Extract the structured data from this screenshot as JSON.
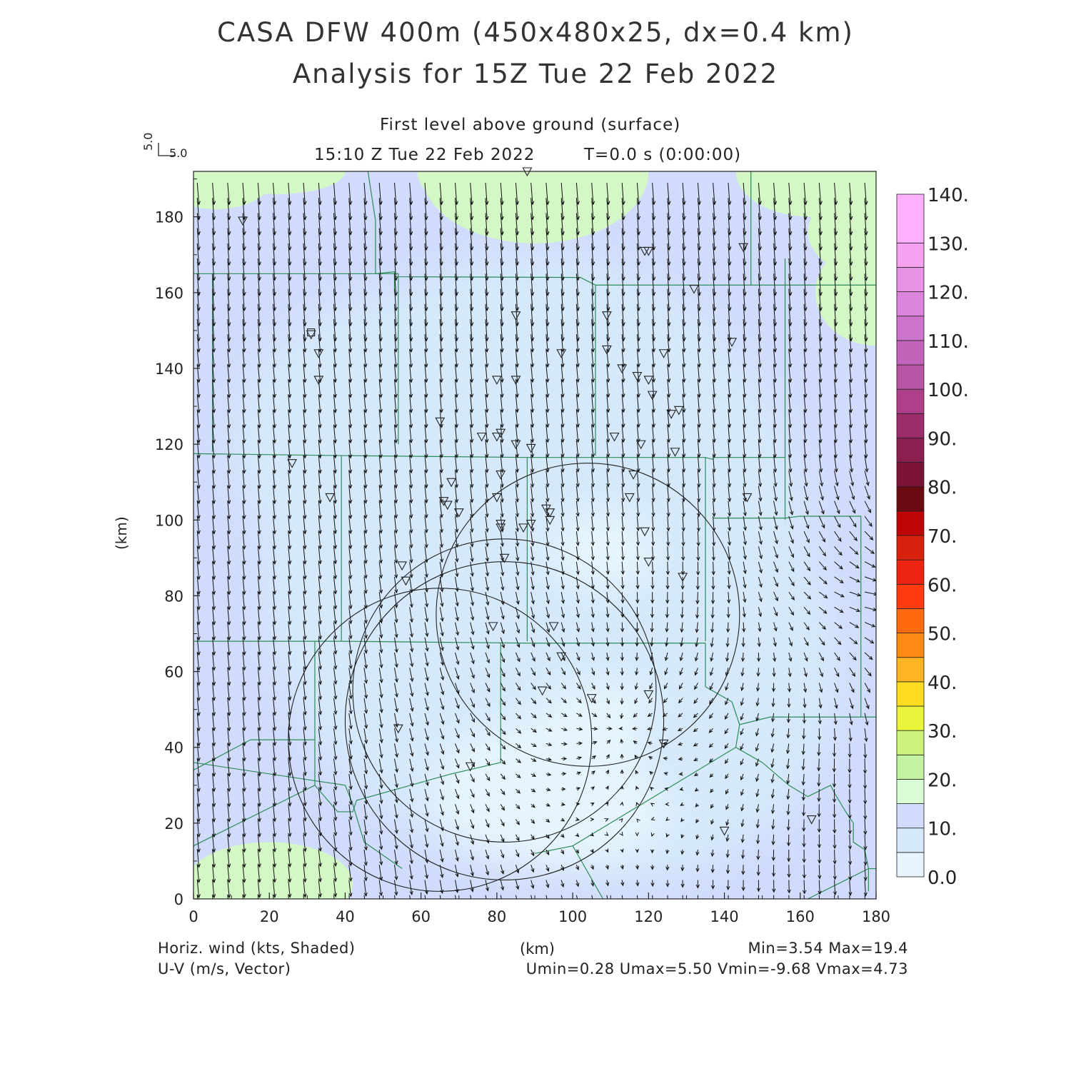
{
  "title_line1": "CASA DFW 400m (450x480x25, dx=0.4 km)",
  "title_line2": "Analysis for 15Z Tue 22 Feb 2022",
  "level_label": "First level above ground (surface)",
  "time_label": "15:10 Z Tue 22 Feb 2022",
  "elapsed_label": "T=0.0 s (0:00:00)",
  "vector_scale": {
    "u_label": "5.0",
    "v_label": "5.0"
  },
  "y_axis_label": "(km)",
  "x_axis_label": "(km)",
  "field_label": "Horiz. wind (kts, Shaded)",
  "vector_label": "U-V (m/s, Vector)",
  "minmax_label": "Min=3.54 Max=19.4",
  "uv_minmax_label": "Umin=0.28 Umax=5.50 Vmin=-9.68 Vmax=4.73",
  "chart_data": {
    "type": "heatmap",
    "title": "CASA DFW 400m (450x480x25, dx=0.4 km)",
    "xlabel": "(km)",
    "ylabel": "(km)",
    "xlim": [
      0,
      180
    ],
    "ylim": [
      0,
      192
    ],
    "x_ticks": [
      "0",
      "20",
      "40",
      "60",
      "80",
      "100",
      "120",
      "140",
      "160",
      "180"
    ],
    "y_ticks": [
      "0",
      "20",
      "40",
      "60",
      "80",
      "100",
      "120",
      "140",
      "160",
      "180"
    ],
    "colorbar": {
      "labels": [
        "0.0",
        "10.",
        "20.",
        "30.",
        "40.",
        "50.",
        "60.",
        "70.",
        "80.",
        "90.",
        "100.",
        "110.",
        "120.",
        "130.",
        "140."
      ],
      "colors": [
        "#e6f5fd",
        "#d5e9fb",
        "#d1dcfc",
        "#d9fdd4",
        "#c3f2a2",
        "#cdf27c",
        "#e9f43a",
        "#ffdc21",
        "#ffb521",
        "#ff8a13",
        "#ff6a0d",
        "#ff3b10",
        "#ee2311",
        "#d7220e",
        "#bf0505",
        "#6c0a14",
        "#7a1334",
        "#8b1f50",
        "#9c2d6c",
        "#ad4088",
        "#b855a4",
        "#c063b9",
        "#cd75cc",
        "#db84db",
        "#e892e6",
        "#f7a2f1",
        "#ffb0ff"
      ]
    },
    "shading_regions": [
      {
        "level": "15-20",
        "color": "#d4f7c6",
        "location": "top-left corner"
      },
      {
        "level": "15-20",
        "color": "#d4f7c6",
        "location": "top-center"
      },
      {
        "level": "15-20",
        "color": "#d4f7c6",
        "location": "top-right"
      },
      {
        "level": "15-20",
        "color": "#d4f7c6",
        "location": "right edge"
      },
      {
        "level": "15-20",
        "color": "#d4f7c6",
        "location": "bottom-left"
      },
      {
        "level": "10-15",
        "color": "#d1dcfc",
        "location": "outer band"
      },
      {
        "level": "5-10",
        "color": "#d5e9fb",
        "location": "center"
      },
      {
        "level": "0-5",
        "color": "#e6f5fd",
        "location": "lower center"
      }
    ],
    "radar_rings": [
      {
        "center": [
          65,
          42
        ],
        "radius": 40
      },
      {
        "center": [
          82,
          47
        ],
        "radius": 42
      },
      {
        "center": [
          82,
          55
        ],
        "radius": 40
      },
      {
        "center": [
          104,
          75
        ],
        "radius": 40
      }
    ],
    "station_markers": [
      [
        13,
        179
      ],
      [
        88,
        192
      ],
      [
        119,
        171
      ],
      [
        120,
        171
      ],
      [
        145,
        172
      ],
      [
        132,
        161
      ],
      [
        31,
        149
      ],
      [
        33,
        144
      ],
      [
        33,
        137
      ],
      [
        85,
        154
      ],
      [
        109,
        154
      ],
      [
        142,
        147
      ],
      [
        97,
        144
      ],
      [
        109,
        145
      ],
      [
        124,
        144
      ],
      [
        113,
        140
      ],
      [
        117,
        138
      ],
      [
        120,
        137
      ],
      [
        80,
        137
      ],
      [
        85,
        137
      ],
      [
        121,
        133
      ],
      [
        65,
        126
      ],
      [
        126,
        128
      ],
      [
        128,
        129
      ],
      [
        76,
        122
      ],
      [
        80,
        122
      ],
      [
        81,
        123
      ],
      [
        85,
        120
      ],
      [
        89,
        119
      ],
      [
        111,
        122
      ],
      [
        118,
        120
      ],
      [
        127,
        118
      ],
      [
        26,
        115
      ],
      [
        36,
        106
      ],
      [
        68,
        110
      ],
      [
        81,
        112
      ],
      [
        116,
        112
      ],
      [
        80,
        106
      ],
      [
        66,
        105
      ],
      [
        67,
        104
      ],
      [
        70,
        102
      ],
      [
        93,
        103
      ],
      [
        94,
        102
      ],
      [
        94,
        100
      ],
      [
        115,
        106
      ],
      [
        146,
        106
      ],
      [
        81,
        99
      ],
      [
        81,
        98
      ],
      [
        87,
        98
      ],
      [
        89,
        99
      ],
      [
        119,
        97
      ],
      [
        82,
        90
      ],
      [
        120,
        89
      ],
      [
        55,
        88
      ],
      [
        56,
        84
      ],
      [
        129,
        85
      ],
      [
        79,
        72
      ],
      [
        95,
        72
      ],
      [
        97,
        64
      ],
      [
        92,
        55
      ],
      [
        120,
        54
      ],
      [
        105,
        53
      ],
      [
        54,
        45
      ],
      [
        124,
        41
      ],
      [
        73,
        35
      ],
      [
        140,
        18
      ],
      [
        163,
        21
      ]
    ],
    "wind_direction": "mostly from the north-northwest, turning to from the west on the right side"
  }
}
